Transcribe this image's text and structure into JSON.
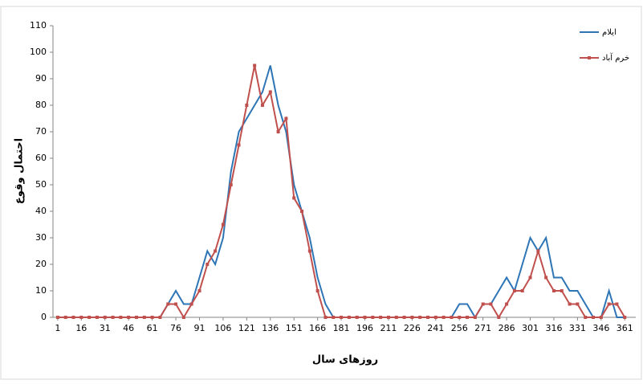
{
  "chart_data": {
    "type": "line",
    "x_label": "روزهای سال",
    "y_label": "احتمال وقوع",
    "x": [
      1,
      6,
      11,
      16,
      21,
      26,
      31,
      36,
      41,
      46,
      51,
      56,
      61,
      66,
      71,
      76,
      81,
      86,
      91,
      96,
      101,
      106,
      111,
      116,
      121,
      126,
      131,
      136,
      141,
      146,
      151,
      156,
      161,
      166,
      171,
      176,
      181,
      186,
      191,
      196,
      201,
      206,
      211,
      216,
      221,
      226,
      231,
      236,
      241,
      246,
      251,
      256,
      261,
      266,
      271,
      276,
      281,
      286,
      291,
      296,
      301,
      306,
      311,
      316,
      321,
      326,
      331,
      336,
      341,
      346,
      351,
      356,
      361
    ],
    "series": [
      {
        "name": "ایلام",
        "color": "#2e75b6",
        "marker": false,
        "values": [
          0,
          0,
          0,
          0,
          0,
          0,
          0,
          0,
          0,
          0,
          0,
          0,
          0,
          0,
          5,
          10,
          5,
          5,
          15,
          25,
          20,
          30,
          55,
          70,
          75,
          80,
          85,
          95,
          80,
          70,
          50,
          40,
          30,
          15,
          5,
          0,
          0,
          0,
          0,
          0,
          0,
          0,
          0,
          0,
          0,
          0,
          0,
          0,
          0,
          0,
          0,
          5,
          5,
          0,
          5,
          5,
          10,
          15,
          10,
          20,
          30,
          25,
          30,
          15,
          15,
          10,
          10,
          5,
          0,
          0,
          10,
          0,
          0
        ]
      },
      {
        "name": "خرم آباد",
        "color": "#c0504d",
        "marker": true,
        "values": [
          0,
          0,
          0,
          0,
          0,
          0,
          0,
          0,
          0,
          0,
          0,
          0,
          0,
          0,
          5,
          5,
          0,
          5,
          10,
          20,
          25,
          35,
          50,
          65,
          80,
          95,
          80,
          85,
          70,
          75,
          45,
          40,
          25,
          10,
          0,
          0,
          0,
          0,
          0,
          0,
          0,
          0,
          0,
          0,
          0,
          0,
          0,
          0,
          0,
          0,
          0,
          0,
          0,
          0,
          5,
          5,
          0,
          5,
          10,
          10,
          15,
          25,
          15,
          10,
          10,
          5,
          5,
          0,
          0,
          0,
          5,
          5,
          0
        ]
      }
    ],
    "xlim": [
      -2,
      368
    ],
    "xticks": [
      1,
      16,
      31,
      46,
      61,
      76,
      91,
      106,
      121,
      136,
      151,
      166,
      181,
      196,
      211,
      226,
      241,
      256,
      271,
      286,
      301,
      316,
      331,
      346,
      361
    ],
    "ylim": [
      0,
      110
    ],
    "yticks": [
      0,
      10,
      20,
      30,
      40,
      50,
      60,
      70,
      80,
      90,
      100,
      110
    ],
    "grid": false,
    "legend": "top-right"
  }
}
